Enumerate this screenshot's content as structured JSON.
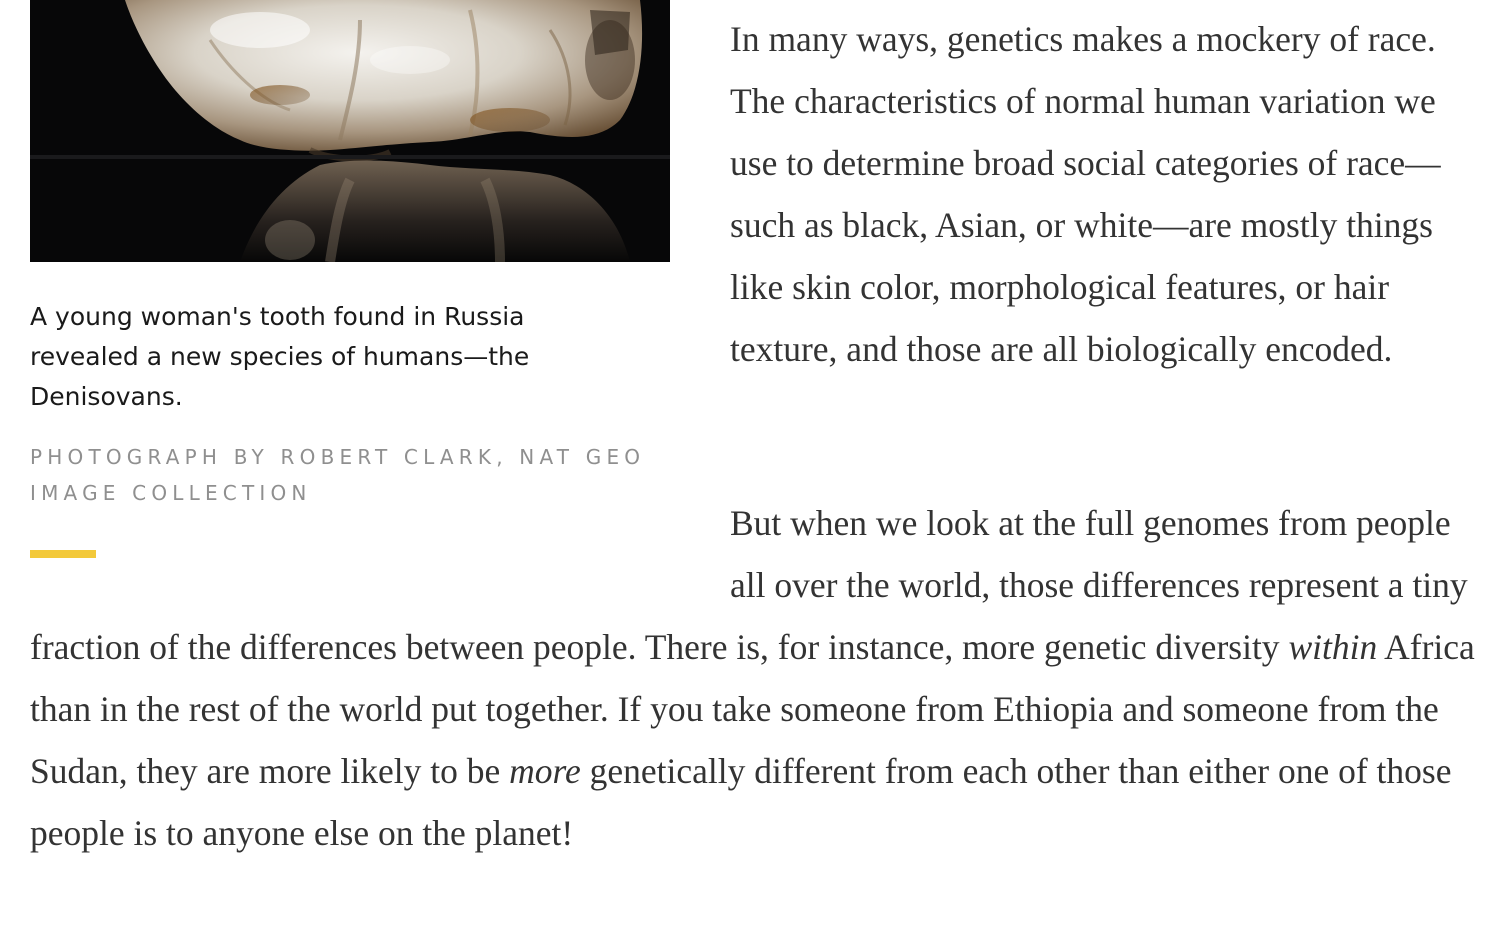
{
  "figure": {
    "image_alt": "Close-up photograph of a tooth on a dark reflective surface",
    "caption": "A young woman's tooth found in Russia revealed a new species of humans—the Denisovans.",
    "credit": "PHOTOGRAPH BY ROBERT CLARK, NAT GEO IMAGE COLLECTION",
    "accent_color": "#f3c93a"
  },
  "article": {
    "paragraph1": "In many ways, genetics makes a mockery of race. The characteristics of normal human variation we use to determine broad social categories of race—such as black, Asian, or white—are mostly things like skin color, morphological features, or hair texture, and those are all biologically encoded.",
    "paragraph2": {
      "part1": "But when we look at the full genomes from people all over the world, those differences represent a tiny fraction of the differences between people. There is, for instance, more genetic diversity ",
      "em1": "within",
      "part2": " Africa than in the rest of the world put together. If you take someone from Ethiopia and someone from the Sudan, they are more likely to be ",
      "em2": "more",
      "part3": " genetically different from each other than either one of those people is to anyone else on the planet!"
    }
  }
}
